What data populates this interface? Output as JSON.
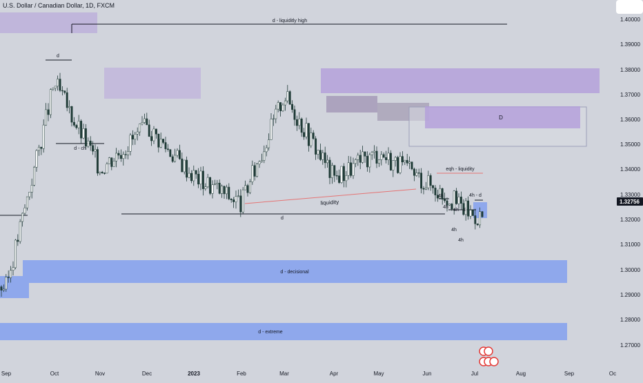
{
  "header": {
    "title": "U.S. Dollar / Canadian Dollar, 1D, FXCM"
  },
  "price_axis": {
    "labels": [
      "1.40000",
      "1.39000",
      "1.38000",
      "1.37000",
      "1.36000",
      "1.35000",
      "1.34000",
      "1.33000",
      "1.32000",
      "1.31000",
      "1.30000",
      "1.29000",
      "1.28000",
      "1.27000"
    ],
    "current_price": "1.32756"
  },
  "time_axis": {
    "labels": [
      "Sep",
      "Oct",
      "Nov",
      "Dec",
      "2023",
      "Feb",
      "Mar",
      "Apr",
      "May",
      "Jun",
      "Jul",
      "Aug",
      "Sep",
      "Oc"
    ]
  },
  "colors": {
    "background": "#d1d4dc",
    "candle_up": "#ffffff",
    "candle_down": "#1f3a36",
    "zone_purple": "#b39ddb",
    "zone_blue": "#8fa8ec",
    "liquidity_line": "#e57373"
  },
  "annotations": {
    "liquidity_high": "d - liquiditly high",
    "d_top": "d",
    "d_ch": "d - ch",
    "d_big": "D",
    "eqh": "eqh - liquidity",
    "liquidity": "liquidity",
    "d_mid": "d",
    "d_decisional": "d - decisional",
    "d_extreme": "d - extreme",
    "h4_a": "4h",
    "h4_b": "4h - d",
    "h4_c": "4h",
    "h4_d": "4h",
    "h4_e": "4h",
    "h4_f": "4h - d"
  },
  "chart_data": {
    "type": "candlestick",
    "title": "U.S. Dollar / Canadian Dollar, 1D, FXCM",
    "ylim": [
      1.2635,
      1.4165
    ],
    "x": [
      "Sep",
      "Oct",
      "Nov",
      "Dec",
      "2023",
      "Feb",
      "Mar",
      "Apr",
      "May",
      "Jun",
      "Jul",
      "Aug",
      "Sep",
      "Oc"
    ],
    "current_price": 1.32756,
    "approx_close_path": [
      {
        "x": "Sep",
        "y": 1.297
      },
      {
        "x": "Oct",
        "y": 1.385
      },
      {
        "x": "Nov",
        "y": 1.348
      },
      {
        "x": "Dec",
        "y": 1.366
      },
      {
        "x": "2023",
        "y": 1.345
      },
      {
        "x": "Feb",
        "y": 1.333
      },
      {
        "x": "Mar",
        "y": 1.38
      },
      {
        "x": "Apr",
        "y": 1.344
      },
      {
        "x": "May",
        "y": 1.355
      },
      {
        "x": "Jun",
        "y": 1.342
      },
      {
        "x": "Jul",
        "y": 1.3276
      }
    ],
    "zones": [
      {
        "label": "d - decisional",
        "from": 1.2953,
        "to": 1.3042
      },
      {
        "label": "d - extreme",
        "from": 1.2732,
        "to": 1.2798
      },
      {
        "label": "D",
        "from": 1.3567,
        "to": 1.3656
      }
    ],
    "levels": [
      {
        "label": "d - liquiditly high",
        "y": 1.3975
      },
      {
        "label": "d",
        "y": 1.3222
      },
      {
        "label": "eqh - liquidity",
        "y": 1.3388
      }
    ]
  }
}
